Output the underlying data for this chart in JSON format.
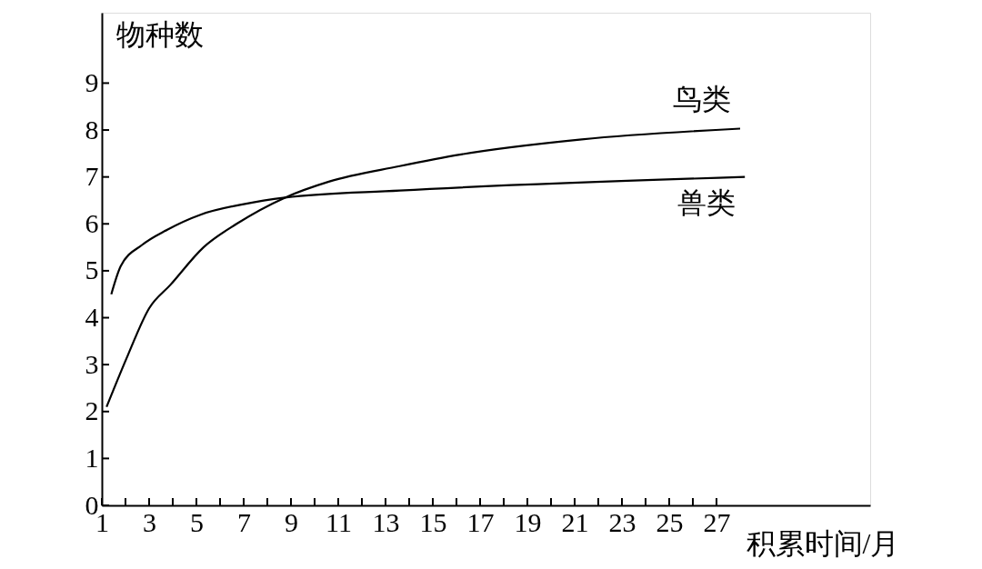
{
  "chart_data": {
    "type": "line",
    "xlabel": "积累时间/月",
    "ylabel": "物种数",
    "xlim": [
      1,
      33.5
    ],
    "ylim": [
      0,
      10.5
    ],
    "xticks": [
      1,
      {
        "value": 2,
        "label": null
      },
      3,
      {
        "value": 4,
        "label": null
      },
      5,
      {
        "value": 6,
        "label": null
      },
      7,
      {
        "value": 8,
        "label": null
      },
      9,
      {
        "value": 10,
        "label": null
      },
      11,
      {
        "value": 12,
        "label": null
      },
      13,
      {
        "value": 14,
        "label": null
      },
      15,
      {
        "value": 16,
        "label": null
      },
      17,
      {
        "value": 18,
        "label": null
      },
      19,
      {
        "value": 20,
        "label": null
      },
      21,
      {
        "value": 22,
        "label": null
      },
      23,
      {
        "value": 24,
        "label": null
      },
      25,
      {
        "value": 26,
        "label": null
      },
      27
    ],
    "yticks": [
      0,
      1,
      2,
      3,
      4,
      5,
      6,
      7,
      8,
      9
    ],
    "grid": false,
    "legend": false,
    "marker": "none",
    "line_style": "solid",
    "series": [
      {
        "name": "鸟类",
        "color": "#000000",
        "x": [
          1.2,
          2.1,
          3.0,
          3.9,
          5.3,
          6.7,
          8.75,
          10.6,
          13.6,
          16.2,
          21.3,
          28.0
        ],
        "values": [
          2.1,
          3.2,
          4.2,
          4.7,
          5.5,
          6.0,
          6.56,
          6.9,
          7.23,
          7.48,
          7.8,
          8.03
        ]
      },
      {
        "name": "兽类",
        "color": "#000000",
        "x": [
          1.4,
          1.8,
          2.7,
          3.75,
          5.2,
          7.0,
          8.75,
          13.6,
          28.2
        ],
        "values": [
          4.5,
          5.1,
          5.55,
          5.87,
          6.2,
          6.42,
          6.56,
          6.71,
          7.0
        ]
      }
    ]
  }
}
